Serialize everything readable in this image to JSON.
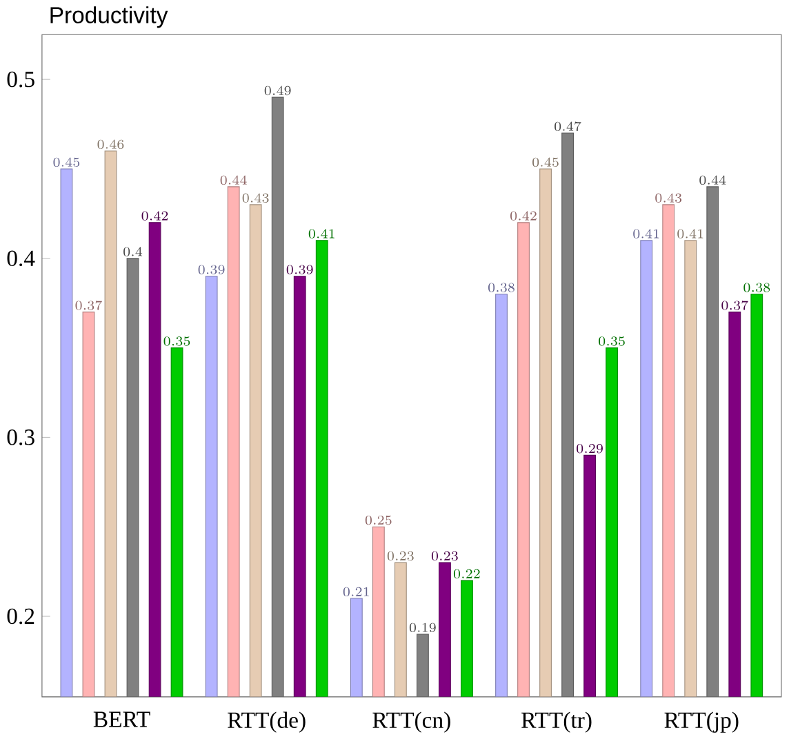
{
  "chart_data": {
    "type": "bar",
    "title": "Productivity",
    "categories": [
      "BERT",
      "RTT(de)",
      "RTT(cn)",
      "RTT(tr)",
      "RTT(jp)"
    ],
    "series": [
      {
        "color": "#b3b3ff",
        "values": [
          0.45,
          0.39,
          0.21,
          0.38,
          0.41
        ]
      },
      {
        "color": "#ffb3b3",
        "values": [
          0.37,
          0.44,
          0.25,
          0.42,
          0.43
        ]
      },
      {
        "color": "#e6ccb3",
        "values": [
          0.46,
          0.43,
          0.23,
          0.45,
          0.41
        ]
      },
      {
        "color": "#808080",
        "values": [
          0.4,
          0.49,
          0.19,
          0.47,
          0.44
        ]
      },
      {
        "color": "#800080",
        "values": [
          0.42,
          0.39,
          0.23,
          0.29,
          0.37
        ]
      },
      {
        "color": "#00cc00",
        "values": [
          0.35,
          0.41,
          0.22,
          0.35,
          0.38
        ]
      }
    ],
    "ylim": [
      0.155,
      0.525
    ],
    "yticks": [
      0.2,
      0.3,
      0.4,
      0.5
    ],
    "data_labels": true,
    "grid": false
  }
}
